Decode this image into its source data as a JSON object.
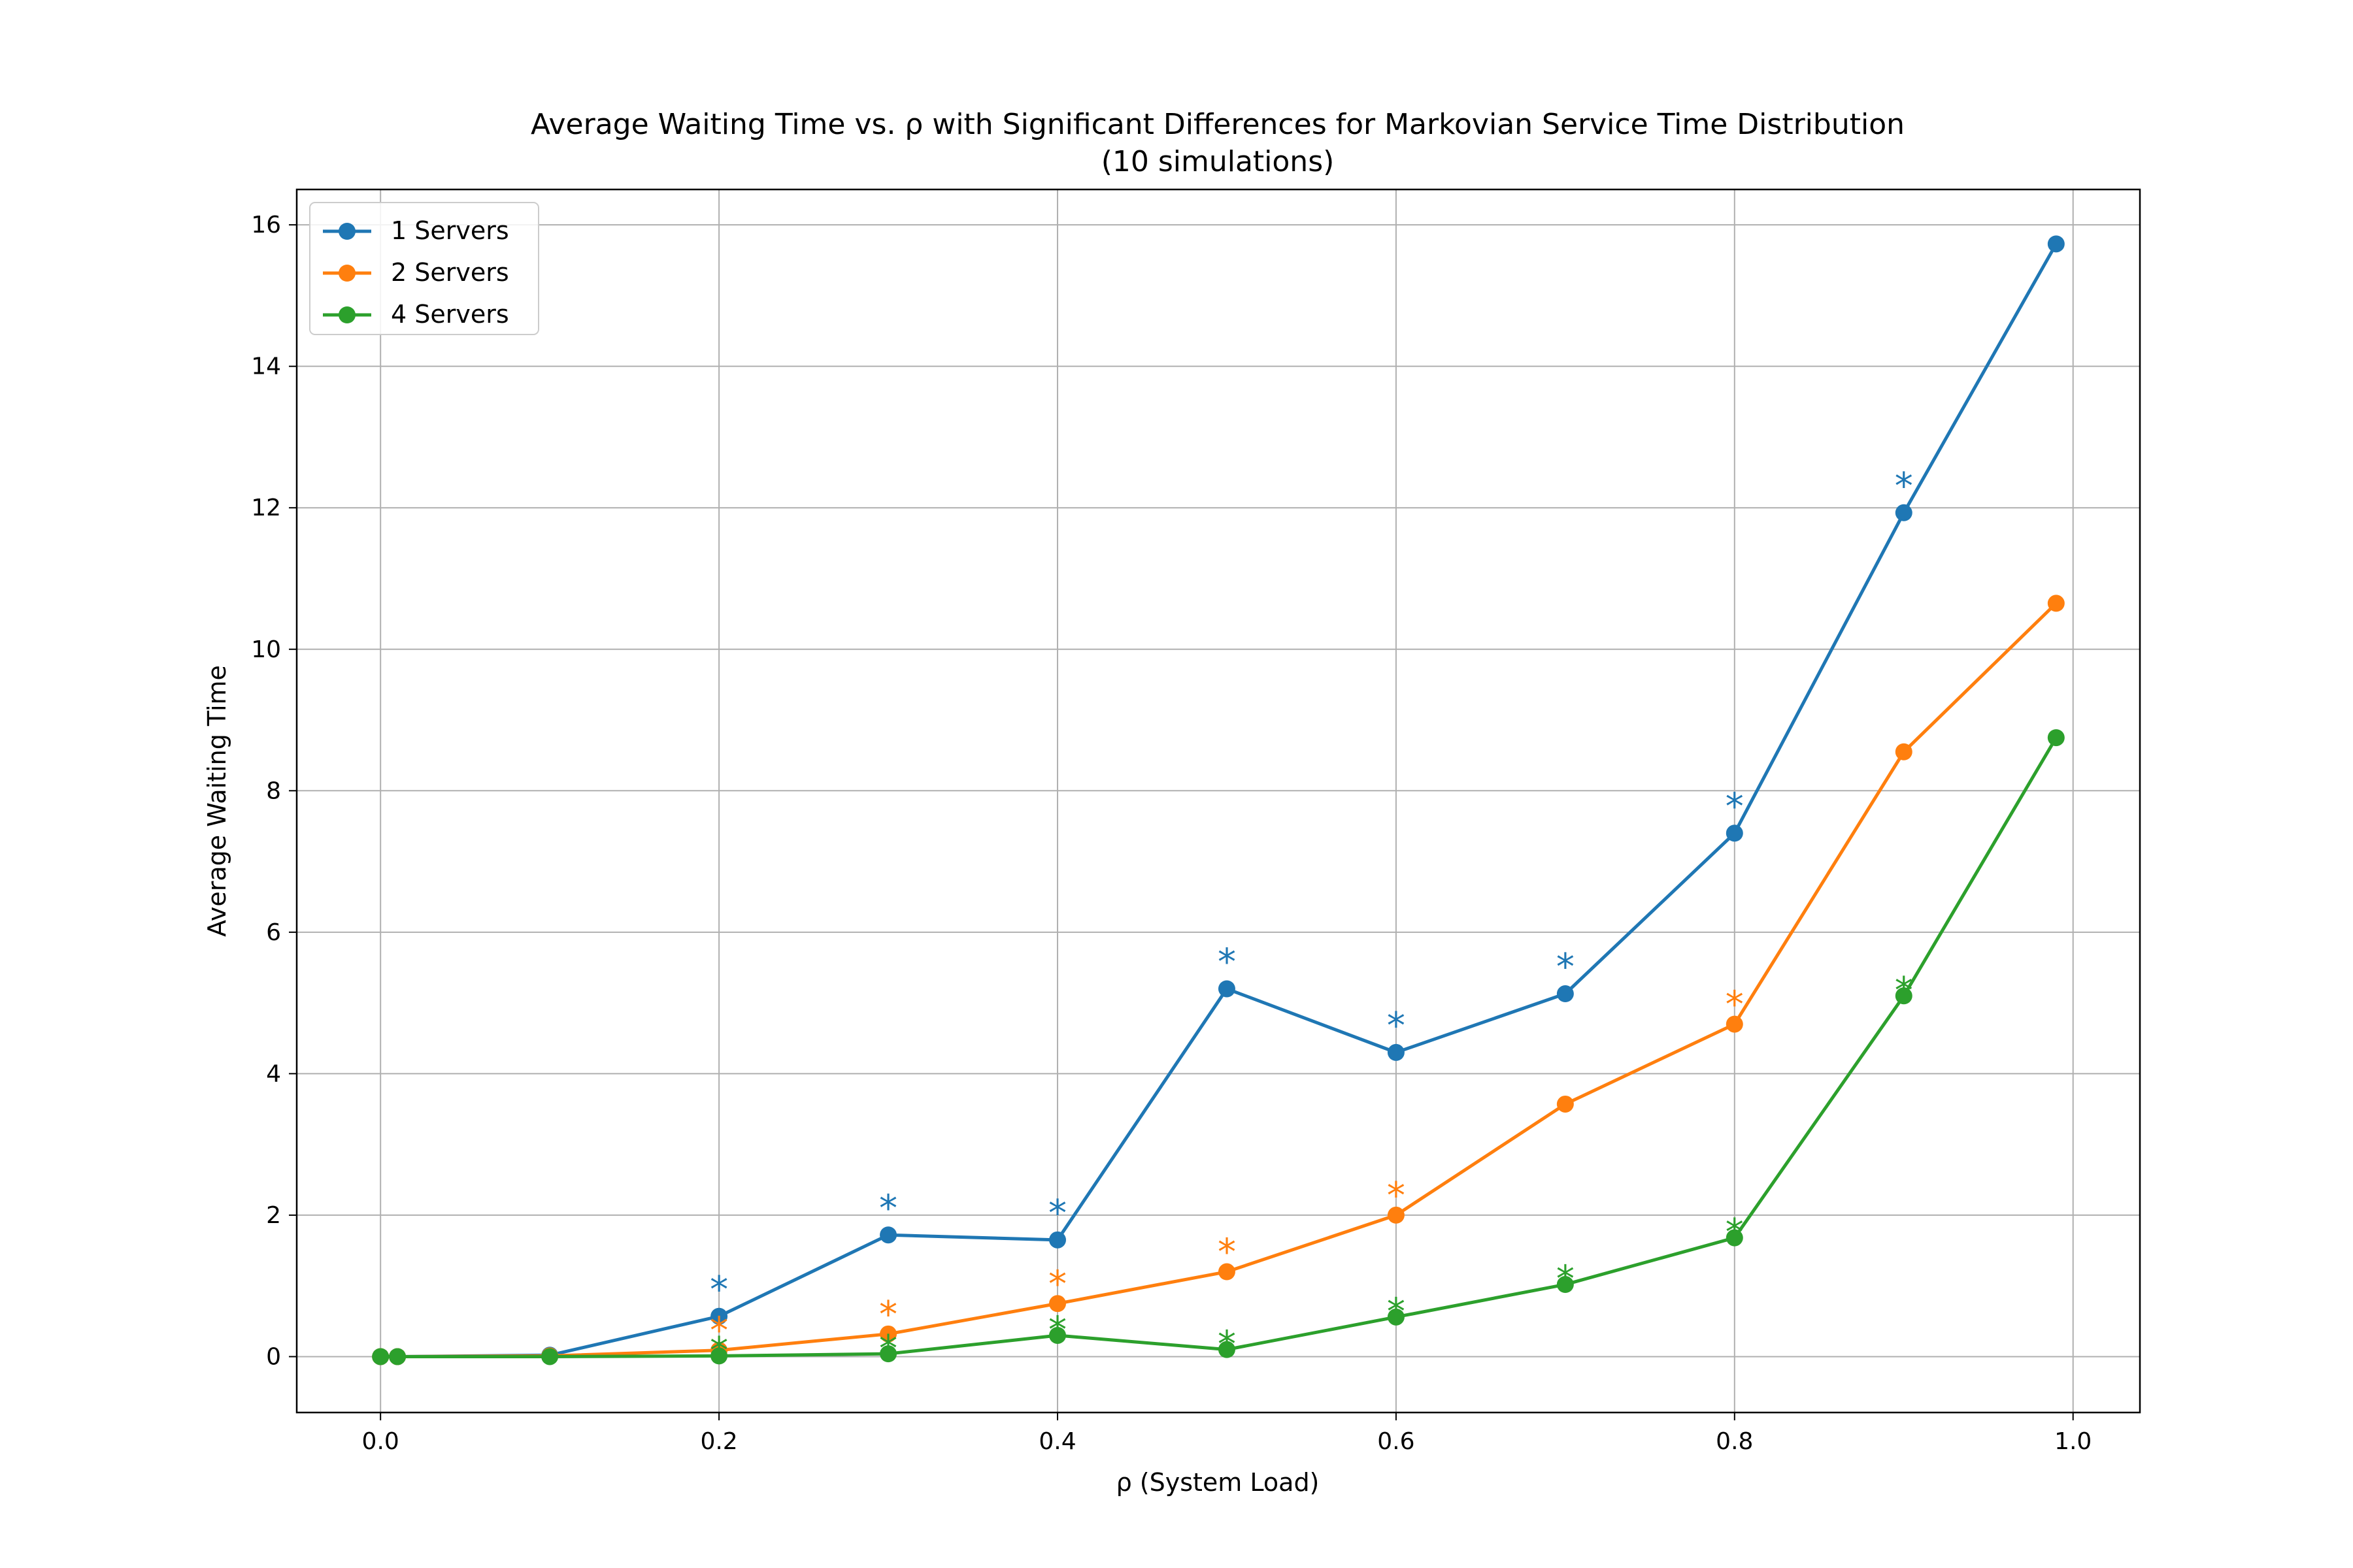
{
  "chart_data": {
    "type": "line",
    "title": "Average Waiting Time vs. ρ with Significant Differences for Markovian Service Time Distribution",
    "subtitle": "(10 simulations)",
    "xlabel": "ρ (System Load)",
    "ylabel": "Average Waiting Time",
    "xlim": [
      -0.0495,
      1.0395
    ],
    "ylim": [
      -0.79,
      16.5
    ],
    "xticks": [
      "0.0",
      "0.2",
      "0.4",
      "0.6",
      "0.8",
      "1.0"
    ],
    "yticks": [
      "0",
      "2",
      "4",
      "6",
      "8",
      "10",
      "12",
      "14",
      "16"
    ],
    "grid": true,
    "legend_position": "top-left",
    "significance_marker": "*",
    "x": [
      0.0,
      0.01,
      0.1,
      0.2,
      0.3,
      0.4,
      0.5,
      0.6,
      0.7,
      0.8,
      0.9,
      0.99
    ],
    "series": [
      {
        "name": "1 Servers",
        "color": "#1f77b4",
        "values": [
          0.0,
          0.0,
          0.02,
          0.57,
          1.72,
          1.65,
          5.2,
          4.3,
          5.13,
          7.4,
          11.93,
          15.73
        ],
        "significance_x": [
          0.2,
          0.3,
          0.4,
          0.5,
          0.6,
          0.7,
          0.8,
          0.9
        ],
        "significance_y": [
          1.03,
          2.18,
          2.11,
          5.66,
          4.76,
          5.59,
          7.86,
          12.39
        ]
      },
      {
        "name": "2 Servers",
        "color": "#ff7f0e",
        "values": [
          0.0,
          0.0,
          0.01,
          0.09,
          0.32,
          0.75,
          1.2,
          2.0,
          3.57,
          4.7,
          8.55,
          10.65
        ],
        "significance_x": [
          0.2,
          0.3,
          0.4,
          0.5,
          0.6,
          0.8
        ],
        "significance_y": [
          0.45,
          0.68,
          1.11,
          1.56,
          2.36,
          5.06
        ]
      },
      {
        "name": "4 Servers",
        "color": "#2ca02c",
        "values": [
          0.0,
          0.0,
          0.0,
          0.01,
          0.04,
          0.3,
          0.1,
          0.56,
          1.02,
          1.68,
          5.1,
          8.75
        ],
        "significance_x": [
          0.2,
          0.3,
          0.4,
          0.5,
          0.6,
          0.7,
          0.8,
          0.9
        ],
        "significance_y": [
          0.17,
          0.2,
          0.46,
          0.26,
          0.72,
          1.18,
          1.84,
          5.26
        ]
      }
    ]
  }
}
